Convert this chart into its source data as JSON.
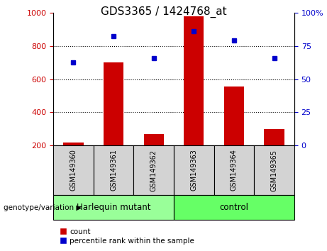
{
  "title": "GDS3365 / 1424768_at",
  "categories": [
    "GSM149360",
    "GSM149361",
    "GSM149362",
    "GSM149363",
    "GSM149364",
    "GSM149365"
  ],
  "bar_values": [
    215,
    700,
    270,
    980,
    555,
    300
  ],
  "dot_right_vals": [
    62.5,
    82.5,
    66,
    86,
    79,
    66
  ],
  "left_ylim": [
    200,
    1000
  ],
  "right_ylim": [
    0,
    100
  ],
  "left_yticks": [
    200,
    400,
    600,
    800,
    1000
  ],
  "right_yticks": [
    0,
    25,
    50,
    75,
    100
  ],
  "bar_color": "#cc0000",
  "dot_color": "#0000cc",
  "left_axis_color": "#cc0000",
  "right_axis_color": "#0000cc",
  "groups": [
    {
      "label": "Harlequin mutant",
      "indices": [
        0,
        1,
        2
      ],
      "color": "#99ff99"
    },
    {
      "label": "control",
      "indices": [
        3,
        4,
        5
      ],
      "color": "#66ff66"
    }
  ],
  "genotype_label": "genotype/variation",
  "legend_items": [
    {
      "label": "count",
      "color": "#cc0000"
    },
    {
      "label": "percentile rank within the sample",
      "color": "#0000cc"
    }
  ],
  "tick_label_fontsize": 8,
  "title_fontsize": 11,
  "sample_box_color": "#d3d3d3",
  "grid_yticks": [
    400,
    600,
    800
  ]
}
